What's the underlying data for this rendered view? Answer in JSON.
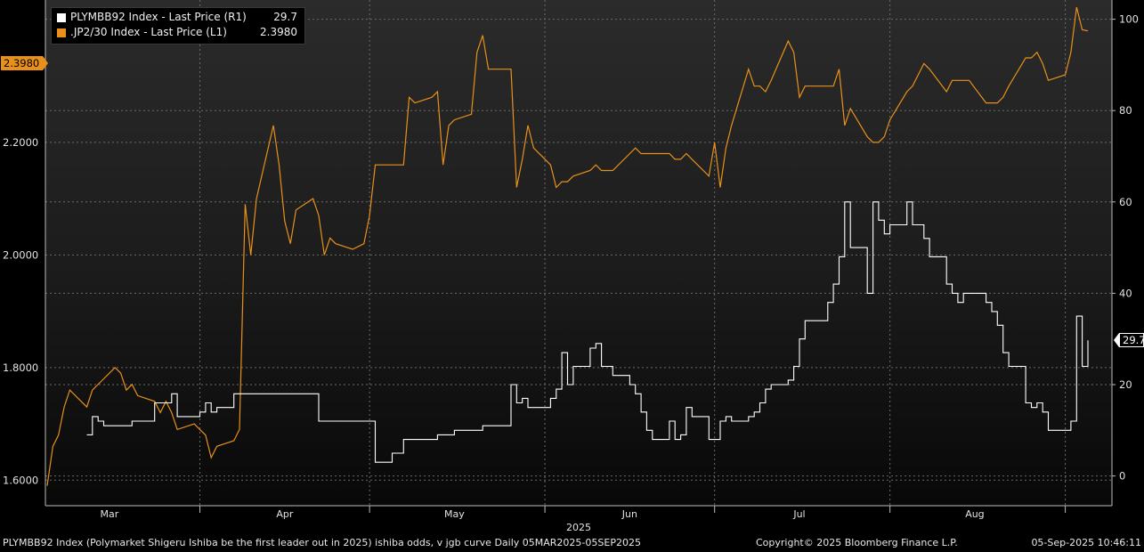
{
  "legend": {
    "white": {
      "name": "PLYMBB92 Index - Last Price (R1)",
      "value": "29.7",
      "color": "#ffffff"
    },
    "orange": {
      "name": ".JP2/30 Index - Last Price (L1)",
      "value": "2.3980",
      "color": "#e8901a"
    }
  },
  "tags": {
    "left": "2.3980",
    "right": "29.7"
  },
  "axes": {
    "left_ticks": [
      "1.6000",
      "1.8000",
      "2.0000",
      "2.2000"
    ],
    "right_ticks": [
      "0",
      "20",
      "40",
      "60",
      "80",
      "100"
    ],
    "months": [
      "Mar",
      "Apr",
      "May",
      "Jun",
      "Jul",
      "Aug"
    ],
    "year": "2025"
  },
  "footer": {
    "left": "PLYMBB92 Index (Polymarket Shigeru Ishiba be the first leader out in 2025) ishiba odds, v jgb curve  Daily 05MAR2025-05SEP2025",
    "mid": "Copyright© 2025 Bloomberg Finance L.P.",
    "right": "05-Sep-2025 10:46:11"
  },
  "chart_data": {
    "type": "line",
    "x_range": [
      "2025-03-05",
      "2025-09-05"
    ],
    "left_ylim": [
      1.55,
      2.45
    ],
    "right_ylim": [
      -2,
      100
    ],
    "grid": true,
    "legend_position": "top-left",
    "series": [
      {
        "name": ".JP2/30 Index - Last Price (L1)",
        "axis": "left",
        "color": "#e8901a",
        "points": [
          [
            "2025-03-05",
            1.59
          ],
          [
            "2025-03-06",
            1.66
          ],
          [
            "2025-03-07",
            1.68
          ],
          [
            "2025-03-08",
            1.73
          ],
          [
            "2025-03-09",
            1.76
          ],
          [
            "2025-03-11",
            1.74
          ],
          [
            "2025-03-12",
            1.73
          ],
          [
            "2025-03-13",
            1.76
          ],
          [
            "2025-03-15",
            1.78
          ],
          [
            "2025-03-17",
            1.8
          ],
          [
            "2025-03-18",
            1.79
          ],
          [
            "2025-03-19",
            1.76
          ],
          [
            "2025-03-20",
            1.77
          ],
          [
            "2025-03-21",
            1.75
          ],
          [
            "2025-03-24",
            1.74
          ],
          [
            "2025-03-25",
            1.72
          ],
          [
            "2025-03-26",
            1.74
          ],
          [
            "2025-03-27",
            1.72
          ],
          [
            "2025-03-28",
            1.69
          ],
          [
            "2025-03-31",
            1.7
          ],
          [
            "2025-04-01",
            1.69
          ],
          [
            "2025-04-02",
            1.68
          ],
          [
            "2025-04-03",
            1.64
          ],
          [
            "2025-04-04",
            1.66
          ],
          [
            "2025-04-07",
            1.67
          ],
          [
            "2025-04-08",
            1.69
          ],
          [
            "2025-04-09",
            2.09
          ],
          [
            "2025-04-10",
            2.0
          ],
          [
            "2025-04-11",
            2.1
          ],
          [
            "2025-04-14",
            2.23
          ],
          [
            "2025-04-15",
            2.16
          ],
          [
            "2025-04-16",
            2.06
          ],
          [
            "2025-04-17",
            2.02
          ],
          [
            "2025-04-18",
            2.08
          ],
          [
            "2025-04-21",
            2.1
          ],
          [
            "2025-04-22",
            2.07
          ],
          [
            "2025-04-23",
            2.0
          ],
          [
            "2025-04-24",
            2.03
          ],
          [
            "2025-04-25",
            2.02
          ],
          [
            "2025-04-28",
            2.01
          ],
          [
            "2025-04-30",
            2.02
          ],
          [
            "2025-05-01",
            2.07
          ],
          [
            "2025-05-02",
            2.16
          ],
          [
            "2025-05-07",
            2.16
          ],
          [
            "2025-05-08",
            2.28
          ],
          [
            "2025-05-09",
            2.27
          ],
          [
            "2025-05-12",
            2.28
          ],
          [
            "2025-05-13",
            2.29
          ],
          [
            "2025-05-14",
            2.16
          ],
          [
            "2025-05-15",
            2.23
          ],
          [
            "2025-05-16",
            2.24
          ],
          [
            "2025-05-19",
            2.25
          ],
          [
            "2025-05-20",
            2.36
          ],
          [
            "2025-05-21",
            2.39
          ],
          [
            "2025-05-22",
            2.33
          ],
          [
            "2025-05-23",
            2.33
          ],
          [
            "2025-05-26",
            2.33
          ],
          [
            "2025-05-27",
            2.12
          ],
          [
            "2025-05-28",
            2.17
          ],
          [
            "2025-05-29",
            2.23
          ],
          [
            "2025-05-30",
            2.19
          ],
          [
            "2025-06-02",
            2.16
          ],
          [
            "2025-06-03",
            2.12
          ],
          [
            "2025-06-04",
            2.13
          ],
          [
            "2025-06-05",
            2.13
          ],
          [
            "2025-06-06",
            2.14
          ],
          [
            "2025-06-09",
            2.15
          ],
          [
            "2025-06-10",
            2.16
          ],
          [
            "2025-06-11",
            2.15
          ],
          [
            "2025-06-12",
            2.15
          ],
          [
            "2025-06-13",
            2.15
          ],
          [
            "2025-06-16",
            2.18
          ],
          [
            "2025-06-17",
            2.19
          ],
          [
            "2025-06-18",
            2.18
          ],
          [
            "2025-06-19",
            2.18
          ],
          [
            "2025-06-20",
            2.18
          ],
          [
            "2025-06-23",
            2.18
          ],
          [
            "2025-06-24",
            2.17
          ],
          [
            "2025-06-25",
            2.17
          ],
          [
            "2025-06-26",
            2.18
          ],
          [
            "2025-06-27",
            2.17
          ],
          [
            "2025-06-30",
            2.14
          ],
          [
            "2025-07-01",
            2.2
          ],
          [
            "2025-07-02",
            2.12
          ],
          [
            "2025-07-03",
            2.19
          ],
          [
            "2025-07-04",
            2.23
          ],
          [
            "2025-07-07",
            2.33
          ],
          [
            "2025-07-08",
            2.3
          ],
          [
            "2025-07-09",
            2.3
          ],
          [
            "2025-07-10",
            2.29
          ],
          [
            "2025-07-11",
            2.31
          ],
          [
            "2025-07-14",
            2.38
          ],
          [
            "2025-07-15",
            2.36
          ],
          [
            "2025-07-16",
            2.28
          ],
          [
            "2025-07-17",
            2.3
          ],
          [
            "2025-07-18",
            2.3
          ],
          [
            "2025-07-22",
            2.3
          ],
          [
            "2025-07-23",
            2.33
          ],
          [
            "2025-07-24",
            2.23
          ],
          [
            "2025-07-25",
            2.26
          ],
          [
            "2025-07-28",
            2.21
          ],
          [
            "2025-07-29",
            2.2
          ],
          [
            "2025-07-30",
            2.2
          ],
          [
            "2025-07-31",
            2.21
          ],
          [
            "2025-08-01",
            2.24
          ],
          [
            "2025-08-04",
            2.29
          ],
          [
            "2025-08-05",
            2.3
          ],
          [
            "2025-08-06",
            2.32
          ],
          [
            "2025-08-07",
            2.34
          ],
          [
            "2025-08-08",
            2.33
          ],
          [
            "2025-08-11",
            2.29
          ],
          [
            "2025-08-12",
            2.31
          ],
          [
            "2025-08-13",
            2.31
          ],
          [
            "2025-08-14",
            2.31
          ],
          [
            "2025-08-15",
            2.31
          ],
          [
            "2025-08-18",
            2.27
          ],
          [
            "2025-08-19",
            2.27
          ],
          [
            "2025-08-20",
            2.27
          ],
          [
            "2025-08-21",
            2.28
          ],
          [
            "2025-08-22",
            2.3
          ],
          [
            "2025-08-25",
            2.35
          ],
          [
            "2025-08-26",
            2.35
          ],
          [
            "2025-08-27",
            2.36
          ],
          [
            "2025-08-28",
            2.34
          ],
          [
            "2025-08-29",
            2.31
          ],
          [
            "2025-09-01",
            2.32
          ],
          [
            "2025-09-02",
            2.36
          ],
          [
            "2025-09-03",
            2.44
          ],
          [
            "2025-09-04",
            2.4
          ],
          [
            "2025-09-05",
            2.398
          ]
        ]
      },
      {
        "name": "PLYMBB92 Index - Last Price (R1)",
        "axis": "right",
        "color": "#ffffff",
        "step": true,
        "points": [
          [
            "2025-03-12",
            9
          ],
          [
            "2025-03-13",
            13
          ],
          [
            "2025-03-14",
            12
          ],
          [
            "2025-03-15",
            11
          ],
          [
            "2025-03-17",
            11
          ],
          [
            "2025-03-20",
            12
          ],
          [
            "2025-03-24",
            16
          ],
          [
            "2025-03-26",
            16
          ],
          [
            "2025-03-27",
            18
          ],
          [
            "2025-03-28",
            13
          ],
          [
            "2025-03-31",
            13
          ],
          [
            "2025-04-01",
            14
          ],
          [
            "2025-04-02",
            16
          ],
          [
            "2025-04-03",
            14
          ],
          [
            "2025-04-04",
            15
          ],
          [
            "2025-04-07",
            18
          ],
          [
            "2025-04-10",
            18
          ],
          [
            "2025-04-14",
            18
          ],
          [
            "2025-04-21",
            18
          ],
          [
            "2025-04-22",
            12
          ],
          [
            "2025-04-25",
            12
          ],
          [
            "2025-05-01",
            12
          ],
          [
            "2025-05-02",
            3
          ],
          [
            "2025-05-03",
            3
          ],
          [
            "2025-05-05",
            5
          ],
          [
            "2025-05-07",
            8
          ],
          [
            "2025-05-08",
            8
          ],
          [
            "2025-05-12",
            8
          ],
          [
            "2025-05-13",
            9
          ],
          [
            "2025-05-14",
            9
          ],
          [
            "2025-05-15",
            9
          ],
          [
            "2025-05-16",
            10
          ],
          [
            "2025-05-19",
            10
          ],
          [
            "2025-05-20",
            10
          ],
          [
            "2025-05-21",
            11
          ],
          [
            "2025-05-22",
            11
          ],
          [
            "2025-05-23",
            11
          ],
          [
            "2025-05-26",
            20
          ],
          [
            "2025-05-27",
            16
          ],
          [
            "2025-05-28",
            17
          ],
          [
            "2025-05-29",
            15
          ],
          [
            "2025-05-30",
            15
          ],
          [
            "2025-06-02",
            17
          ],
          [
            "2025-06-03",
            19
          ],
          [
            "2025-06-04",
            27
          ],
          [
            "2025-06-05",
            20
          ],
          [
            "2025-06-06",
            24
          ],
          [
            "2025-06-09",
            28
          ],
          [
            "2025-06-10",
            29
          ],
          [
            "2025-06-11",
            24
          ],
          [
            "2025-06-12",
            24
          ],
          [
            "2025-06-13",
            22
          ],
          [
            "2025-06-16",
            20
          ],
          [
            "2025-06-17",
            18
          ],
          [
            "2025-06-18",
            14
          ],
          [
            "2025-06-19",
            10
          ],
          [
            "2025-06-20",
            8
          ],
          [
            "2025-06-23",
            12
          ],
          [
            "2025-06-24",
            8
          ],
          [
            "2025-06-25",
            9
          ],
          [
            "2025-06-26",
            15
          ],
          [
            "2025-06-27",
            13
          ],
          [
            "2025-06-30",
            8
          ],
          [
            "2025-07-01",
            8
          ],
          [
            "2025-07-02",
            12
          ],
          [
            "2025-07-03",
            13
          ],
          [
            "2025-07-04",
            12
          ],
          [
            "2025-07-07",
            13
          ],
          [
            "2025-07-08",
            14
          ],
          [
            "2025-07-09",
            16
          ],
          [
            "2025-07-10",
            19
          ],
          [
            "2025-07-11",
            20
          ],
          [
            "2025-07-14",
            21
          ],
          [
            "2025-07-15",
            24
          ],
          [
            "2025-07-16",
            30
          ],
          [
            "2025-07-17",
            34
          ],
          [
            "2025-07-18",
            34
          ],
          [
            "2025-07-21",
            38
          ],
          [
            "2025-07-22",
            42
          ],
          [
            "2025-07-23",
            48
          ],
          [
            "2025-07-24",
            60
          ],
          [
            "2025-07-25",
            50
          ],
          [
            "2025-07-28",
            40
          ],
          [
            "2025-07-29",
            60
          ],
          [
            "2025-07-30",
            56
          ],
          [
            "2025-07-31",
            53
          ],
          [
            "2025-08-01",
            55
          ],
          [
            "2025-08-04",
            60
          ],
          [
            "2025-08-05",
            55
          ],
          [
            "2025-08-06",
            55
          ],
          [
            "2025-08-07",
            52
          ],
          [
            "2025-08-08",
            48
          ],
          [
            "2025-08-11",
            42
          ],
          [
            "2025-08-12",
            40
          ],
          [
            "2025-08-13",
            38
          ],
          [
            "2025-08-14",
            40
          ],
          [
            "2025-08-15",
            40
          ],
          [
            "2025-08-18",
            38
          ],
          [
            "2025-08-19",
            36
          ],
          [
            "2025-08-20",
            33
          ],
          [
            "2025-08-21",
            27
          ],
          [
            "2025-08-22",
            24
          ],
          [
            "2025-08-25",
            16
          ],
          [
            "2025-08-26",
            15
          ],
          [
            "2025-08-27",
            16
          ],
          [
            "2025-08-28",
            14
          ],
          [
            "2025-08-29",
            10
          ],
          [
            "2025-09-01",
            10
          ],
          [
            "2025-09-02",
            12
          ],
          [
            "2025-09-03",
            35
          ],
          [
            "2025-09-04",
            24
          ],
          [
            "2025-09-05",
            29.7
          ]
        ]
      }
    ]
  }
}
